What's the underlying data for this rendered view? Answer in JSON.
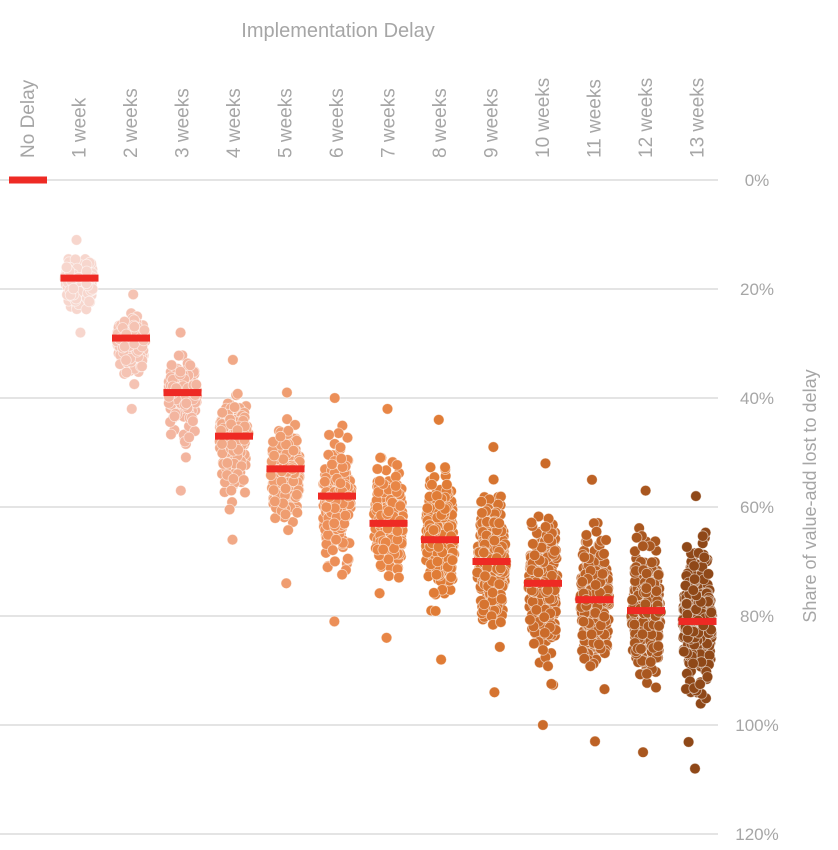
{
  "chart_data": {
    "type": "scatter",
    "title": "Implementation Delay",
    "ylabel": "Share of value-add lost to delay",
    "categories": [
      "No Delay",
      "1 week",
      "2 weeks",
      "3 weeks",
      "4 weeks",
      "5 weeks",
      "6 weeks",
      "7 weeks",
      "8 weeks",
      "9 weeks",
      "10 weeks",
      "11 weeks",
      "12 weeks",
      "13 weeks"
    ],
    "y_ticks": [
      "0%",
      "20%",
      "40%",
      "60%",
      "80%",
      "100%",
      "120%"
    ],
    "ylim": [
      0,
      120
    ],
    "y_axis_inverted": true,
    "grid": true,
    "median_marker_color": "#ee2a24",
    "series": [
      {
        "category": "No Delay",
        "median": 0,
        "min": 0,
        "max": 0,
        "color": "#ee2a24"
      },
      {
        "category": "1 week",
        "median": 18,
        "min": 11,
        "max": 28,
        "color": "#f7d6cd"
      },
      {
        "category": "2 weeks",
        "median": 29,
        "min": 21,
        "max": 42,
        "color": "#f5c3b3"
      },
      {
        "category": "3 weeks",
        "median": 39,
        "min": 28,
        "max": 57,
        "color": "#f3b59f"
      },
      {
        "category": "4 weeks",
        "median": 47,
        "min": 33,
        "max": 66,
        "color": "#f1a987"
      },
      {
        "category": "5 weeks",
        "median": 53,
        "min": 39,
        "max": 74,
        "color": "#ef9d70"
      },
      {
        "category": "6 weeks",
        "median": 58,
        "min": 40,
        "max": 81,
        "color": "#ec8f58"
      },
      {
        "category": "7 weeks",
        "median": 63,
        "min": 42,
        "max": 84,
        "color": "#e88646"
      },
      {
        "category": "8 weeks",
        "median": 66,
        "min": 44,
        "max": 88,
        "color": "#e07c36"
      },
      {
        "category": "9 weeks",
        "median": 70,
        "min": 49,
        "max": 94,
        "color": "#d67430"
      },
      {
        "category": "10 weeks",
        "median": 74,
        "min": 52,
        "max": 100,
        "color": "#cb6b2a"
      },
      {
        "category": "11 weeks",
        "median": 77,
        "min": 55,
        "max": 103,
        "color": "#bd6225"
      },
      {
        "category": "12 weeks",
        "median": 79,
        "min": 57,
        "max": 105,
        "color": "#a9571f"
      },
      {
        "category": "13 weeks",
        "median": 81,
        "min": 58,
        "max": 108,
        "color": "#8f4818"
      }
    ]
  }
}
